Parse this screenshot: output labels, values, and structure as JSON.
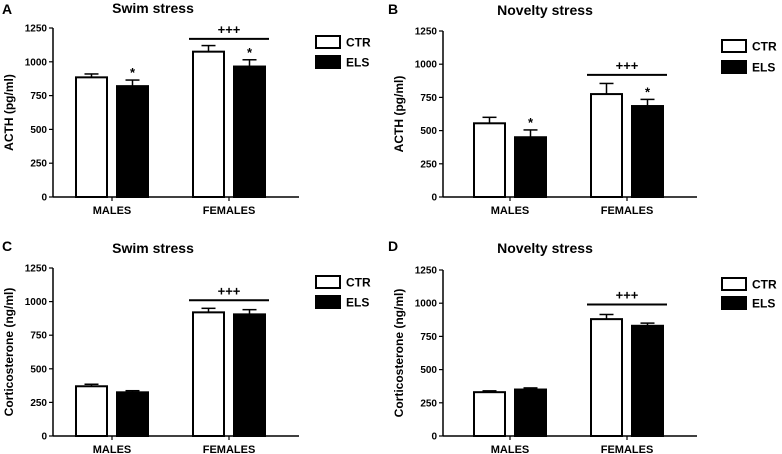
{
  "colors": {
    "ctr_fill": "#ffffff",
    "els_fill": "#000000",
    "axis": "#000000"
  },
  "legend": {
    "ctr_label": "CTR",
    "els_label": "ELS"
  },
  "chart_data": [
    {
      "panel": "A",
      "type": "bar",
      "title": "Swim stress",
      "ylabel": "ACTH (pg/ml)",
      "xlabel": "",
      "ylim": [
        0,
        1250
      ],
      "yticks": [
        0,
        250,
        500,
        750,
        1000,
        1250
      ],
      "categories": [
        "MALES",
        "FEMALES"
      ],
      "series": [
        {
          "name": "CTR",
          "values": [
            885,
            1075
          ],
          "errors": [
            25,
            45
          ]
        },
        {
          "name": "ELS",
          "values": [
            820,
            965
          ],
          "errors": [
            45,
            50
          ]
        }
      ],
      "star_marks": [
        {
          "series": "ELS",
          "category": "MALES",
          "label": "*"
        },
        {
          "series": "ELS",
          "category": "FEMALES",
          "label": "*"
        }
      ],
      "bracket": {
        "category": "FEMALES",
        "label": "+++",
        "y": 1170
      }
    },
    {
      "panel": "B",
      "type": "bar",
      "title": "Novelty stress",
      "ylabel": "ACTH (pg/ml)",
      "xlabel": "",
      "ylim": [
        0,
        1250
      ],
      "yticks": [
        0,
        250,
        500,
        750,
        1000,
        1250
      ],
      "categories": [
        "MALES",
        "FEMALES"
      ],
      "series": [
        {
          "name": "CTR",
          "values": [
            555,
            775
          ],
          "errors": [
            45,
            80
          ]
        },
        {
          "name": "ELS",
          "values": [
            450,
            685
          ],
          "errors": [
            55,
            50
          ]
        }
      ],
      "star_marks": [
        {
          "series": "ELS",
          "category": "MALES",
          "label": "*"
        },
        {
          "series": "ELS",
          "category": "FEMALES",
          "label": "*"
        }
      ],
      "bracket": {
        "category": "FEMALES",
        "label": "+++",
        "y": 920
      }
    },
    {
      "panel": "C",
      "type": "bar",
      "title": "Swim stress",
      "ylabel": "Corticosterone (ng/ml)",
      "xlabel": "",
      "ylim": [
        0,
        1250
      ],
      "yticks": [
        0,
        250,
        500,
        750,
        1000,
        1250
      ],
      "categories": [
        "MALES",
        "FEMALES"
      ],
      "series": [
        {
          "name": "CTR",
          "values": [
            370,
            920
          ],
          "errors": [
            15,
            30
          ]
        },
        {
          "name": "ELS",
          "values": [
            325,
            905
          ],
          "errors": [
            12,
            35
          ]
        }
      ],
      "star_marks": [],
      "bracket": {
        "category": "FEMALES",
        "label": "+++",
        "y": 1010
      }
    },
    {
      "panel": "D",
      "type": "bar",
      "title": "Novelty stress",
      "ylabel": "Corticosterone (ng/ml)",
      "xlabel": "",
      "ylim": [
        0,
        1250
      ],
      "yticks": [
        0,
        250,
        500,
        750,
        1000,
        1250
      ],
      "categories": [
        "MALES",
        "FEMALES"
      ],
      "series": [
        {
          "name": "CTR",
          "values": [
            330,
            880
          ],
          "errors": [
            10,
            35
          ]
        },
        {
          "name": "ELS",
          "values": [
            350,
            830
          ],
          "errors": [
            12,
            20
          ]
        }
      ],
      "star_marks": [],
      "bracket": {
        "category": "FEMALES",
        "label": "+++",
        "y": 990
      }
    }
  ]
}
